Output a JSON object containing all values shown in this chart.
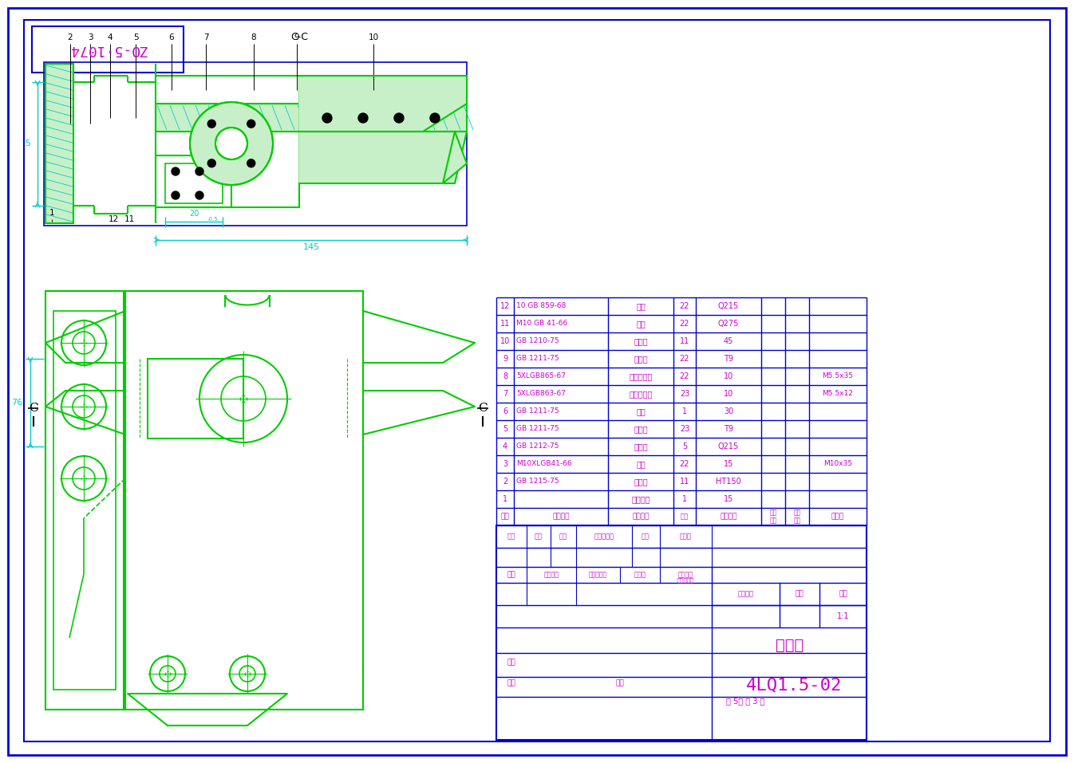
{
  "bg_color": "#ffffff",
  "border_color": "#0000cd",
  "drawing_line_color": "#00cc00",
  "dim_line_color": "#00cccc",
  "magenta_color": "#cc00cc",
  "title_text_mirrored": "ZO-5·1074",
  "section_label": "C-C",
  "part_name": "切割器",
  "part_number": "4LQ1.5-02",
  "sheet_info": "共 5张 第 3 张",
  "scale": "1:1",
  "bom_rows": [
    {
      "seq": "12",
      "code": "10 GB 859-68",
      "name": "垒圈",
      "qty": "22",
      "material": "Q215",
      "note": ""
    },
    {
      "seq": "11",
      "code": "M10 GB 41-66",
      "name": "螺母",
      "qty": "22",
      "material": "Q275",
      "note": ""
    },
    {
      "seq": "10",
      "code": "GB 1210-75",
      "name": "护刃器",
      "qty": "11",
      "material": "45",
      "note": ""
    },
    {
      "seq": "9",
      "code": "GB 1211-75",
      "name": "定刃片",
      "qty": "22",
      "material": "T9",
      "note": ""
    },
    {
      "seq": "8",
      "code": "5XLGB865-67",
      "name": "定刃片铆钉",
      "qty": "22",
      "material": "10",
      "note": "M5.5x35"
    },
    {
      "seq": "7",
      "code": "5XLGB863-67",
      "name": "动刃片铆钉",
      "qty": "23",
      "material": "10",
      "note": "M5.5x12"
    },
    {
      "seq": "6",
      "code": "GB 1211-75",
      "name": "刃杆",
      "qty": "1",
      "material": "30",
      "note": ""
    },
    {
      "seq": "5",
      "code": "GB 1211-75",
      "name": "动刃片",
      "qty": "23",
      "material": "T9",
      "note": ""
    },
    {
      "seq": "4",
      "code": "GB 1212-75",
      "name": "压刃器",
      "qty": "5",
      "material": "Q215",
      "note": ""
    },
    {
      "seq": "3",
      "code": "M10XLGB41-66",
      "name": "螺栓",
      "qty": "22",
      "material": "15",
      "note": "M10x35"
    },
    {
      "seq": "2",
      "code": "GB 1215-75",
      "name": "摩擦片",
      "qty": "11",
      "material": "HT150",
      "note": ""
    },
    {
      "seq": "1",
      "code": "",
      "name": "护刃掛梁",
      "qty": "1",
      "material": "15",
      "note": ""
    }
  ],
  "bom_header": {
    "seq": "序号",
    "code": "代　　号",
    "name": "名　　称",
    "qty": "数量",
    "material": "材　　料",
    "unit_wt": "单件",
    "total_wt": "总计",
    "wt2": "重量",
    "note": "备　注"
  }
}
